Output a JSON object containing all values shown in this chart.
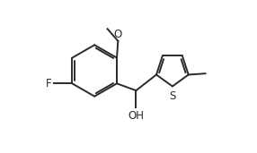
{
  "background": "#ffffff",
  "line_color": "#2a2a2a",
  "line_width": 1.4,
  "font_size": 8.5,
  "font_color": "#2a2a2a",
  "xlim": [
    -1.0,
    9.5
  ],
  "ylim": [
    -0.5,
    6.0
  ]
}
